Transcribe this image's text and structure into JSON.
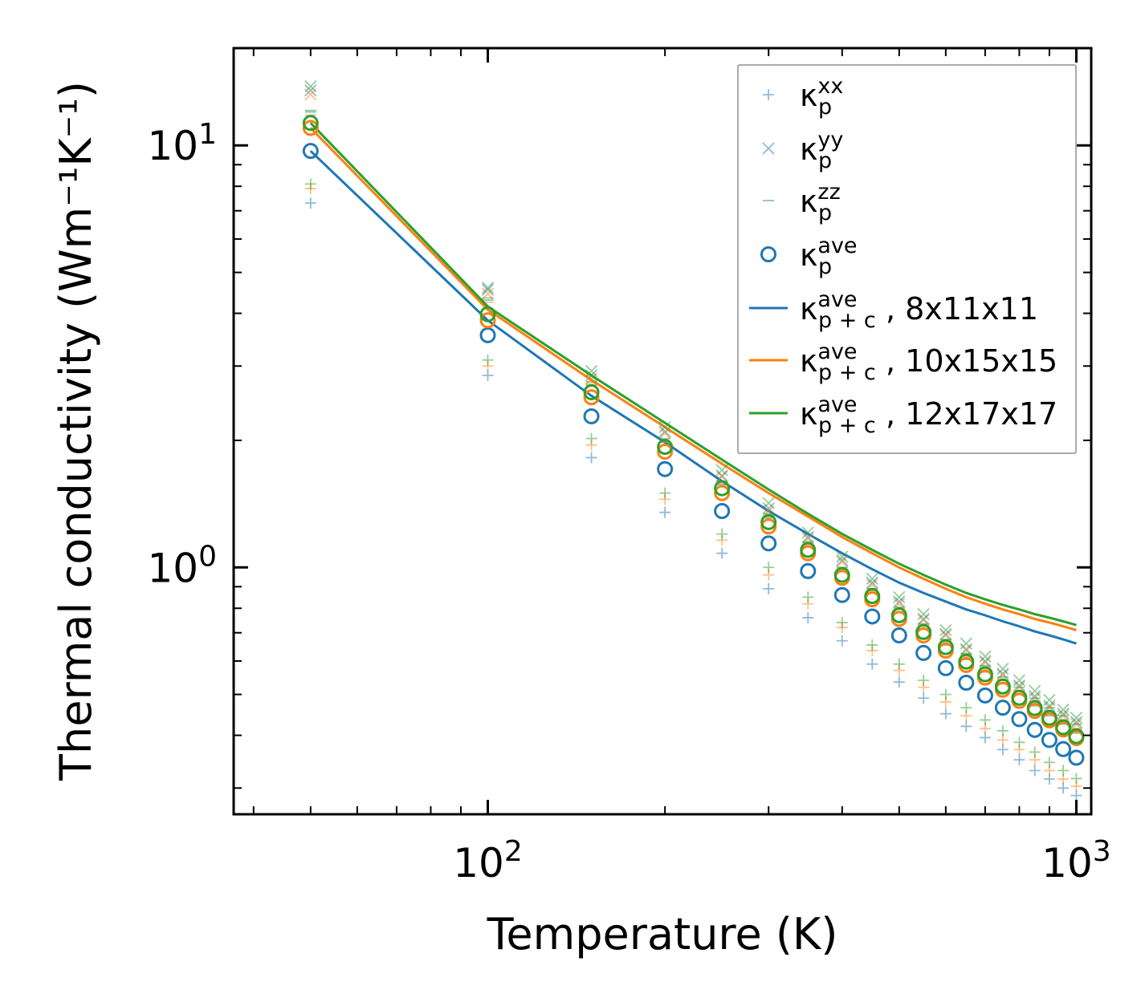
{
  "chart_data": {
    "type": "scatter",
    "xscale": "log",
    "yscale": "log",
    "xlim": [
      37,
      1060
    ],
    "ylim": [
      0.26,
      17.0
    ],
    "xlabel": "Temperature (K)",
    "ylabel": "Thermal conductivity (Wm⁻¹K⁻¹)",
    "xticks": [
      {
        "value": 100,
        "base": "10",
        "exp": "2"
      },
      {
        "value": 1000,
        "base": "10",
        "exp": "3"
      }
    ],
    "yticks": [
      {
        "value": 1,
        "base": "10",
        "exp": "0"
      },
      {
        "value": 10,
        "base": "10",
        "exp": "1"
      }
    ],
    "colors": {
      "blue": "#1f77b4",
      "orange": "#ff7f0e",
      "green": "#2ca02c"
    },
    "x": [
      50,
      100,
      150,
      200,
      250,
      300,
      350,
      400,
      450,
      500,
      550,
      600,
      650,
      700,
      750,
      800,
      850,
      900,
      950,
      1000
    ],
    "series": [
      {
        "mesh": "8x11x11",
        "color": "blue",
        "kxx": [
          7.3,
          2.85,
          1.82,
          1.35,
          1.08,
          0.89,
          0.76,
          0.67,
          0.59,
          0.535,
          0.49,
          0.45,
          0.42,
          0.395,
          0.37,
          0.35,
          0.33,
          0.315,
          0.3,
          0.288
        ],
        "kyy": [
          13.5,
          4.55,
          2.85,
          2.1,
          1.65,
          1.38,
          1.18,
          1.04,
          0.92,
          0.83,
          0.755,
          0.695,
          0.64,
          0.6,
          0.56,
          0.525,
          0.495,
          0.47,
          0.45,
          0.43
        ],
        "kzz": [
          12.0,
          4.3,
          2.7,
          1.98,
          1.57,
          1.31,
          1.12,
          0.98,
          0.87,
          0.785,
          0.715,
          0.655,
          0.605,
          0.565,
          0.53,
          0.5,
          0.47,
          0.445,
          0.425,
          0.405
        ],
        "kave": [
          9.7,
          3.55,
          2.28,
          1.71,
          1.36,
          1.14,
          0.98,
          0.86,
          0.765,
          0.69,
          0.627,
          0.577,
          0.533,
          0.497,
          0.465,
          0.437,
          0.412,
          0.39,
          0.371,
          0.354
        ],
        "kpc": [
          9.7,
          3.85,
          2.55,
          1.98,
          1.6,
          1.36,
          1.2,
          1.08,
          0.99,
          0.92,
          0.87,
          0.83,
          0.795,
          0.77,
          0.745,
          0.725,
          0.705,
          0.69,
          0.675,
          0.66
        ]
      },
      {
        "mesh": "10x15x15",
        "color": "orange",
        "kxx": [
          7.9,
          3.0,
          1.95,
          1.45,
          1.16,
          0.96,
          0.82,
          0.72,
          0.635,
          0.57,
          0.52,
          0.48,
          0.445,
          0.415,
          0.39,
          0.37,
          0.35,
          0.33,
          0.315,
          0.303
        ],
        "kyy": [
          13.2,
          4.45,
          2.8,
          2.08,
          1.64,
          1.36,
          1.17,
          1.03,
          0.91,
          0.82,
          0.75,
          0.69,
          0.635,
          0.595,
          0.555,
          0.52,
          0.49,
          0.465,
          0.445,
          0.425
        ],
        "kzz": [
          11.8,
          4.25,
          2.72,
          1.98,
          1.58,
          1.32,
          1.13,
          0.99,
          0.88,
          0.795,
          0.725,
          0.665,
          0.615,
          0.575,
          0.54,
          0.51,
          0.48,
          0.455,
          0.435,
          0.415
        ],
        "kave": [
          11.0,
          3.85,
          2.53,
          1.88,
          1.5,
          1.25,
          1.08,
          0.945,
          0.84,
          0.755,
          0.69,
          0.635,
          0.587,
          0.548,
          0.513,
          0.483,
          0.457,
          0.434,
          0.413,
          0.394
        ],
        "kpc": [
          11.0,
          4.08,
          2.78,
          2.15,
          1.76,
          1.5,
          1.32,
          1.18,
          1.08,
          1.0,
          0.94,
          0.89,
          0.85,
          0.82,
          0.795,
          0.775,
          0.755,
          0.74,
          0.725,
          0.71
        ]
      },
      {
        "mesh": "12x17x17",
        "color": "green",
        "kxx": [
          8.1,
          3.1,
          2.02,
          1.5,
          1.2,
          1.0,
          0.85,
          0.74,
          0.655,
          0.59,
          0.54,
          0.5,
          0.465,
          0.435,
          0.41,
          0.385,
          0.365,
          0.345,
          0.33,
          0.316
        ],
        "kyy": [
          13.8,
          4.6,
          2.92,
          2.15,
          1.7,
          1.42,
          1.21,
          1.06,
          0.94,
          0.85,
          0.775,
          0.71,
          0.66,
          0.615,
          0.575,
          0.54,
          0.51,
          0.485,
          0.46,
          0.44
        ],
        "kzz": [
          12.1,
          4.35,
          2.75,
          2.02,
          1.6,
          1.34,
          1.15,
          1.0,
          0.89,
          0.805,
          0.735,
          0.675,
          0.625,
          0.585,
          0.55,
          0.52,
          0.49,
          0.465,
          0.445,
          0.425
        ],
        "kave": [
          11.3,
          3.98,
          2.6,
          1.93,
          1.54,
          1.28,
          1.1,
          0.96,
          0.855,
          0.77,
          0.703,
          0.647,
          0.598,
          0.558,
          0.522,
          0.491,
          0.464,
          0.44,
          0.418,
          0.398
        ],
        "kpc": [
          11.3,
          4.15,
          2.85,
          2.2,
          1.8,
          1.53,
          1.34,
          1.2,
          1.1,
          1.02,
          0.96,
          0.91,
          0.87,
          0.84,
          0.815,
          0.795,
          0.775,
          0.76,
          0.745,
          0.73
        ]
      }
    ],
    "legend": {
      "placement": "top-right",
      "entries": [
        {
          "marker": "plus",
          "color": "blue",
          "main": "κ",
          "sub": "p",
          "sup": "xx",
          "suffix": ""
        },
        {
          "marker": "x",
          "color": "blue",
          "main": "κ",
          "sub": "p",
          "sup": "yy",
          "suffix": ""
        },
        {
          "marker": "dash",
          "color": "blue",
          "main": "κ",
          "sub": "p",
          "sup": "zz",
          "suffix": ""
        },
        {
          "marker": "circle",
          "color": "blue",
          "main": "κ",
          "sub": "p",
          "sup": "ave",
          "suffix": ""
        },
        {
          "marker": "line",
          "color": "blue",
          "main": "κ",
          "sub": "p + c",
          "sup": "ave",
          "suffix": ", 8x11x11"
        },
        {
          "marker": "line",
          "color": "orange",
          "main": "κ",
          "sub": "p + c",
          "sup": "ave",
          "suffix": ", 10x15x15"
        },
        {
          "marker": "line",
          "color": "green",
          "main": "κ",
          "sub": "p + c",
          "sup": "ave",
          "suffix": ", 12x17x17"
        }
      ]
    }
  }
}
